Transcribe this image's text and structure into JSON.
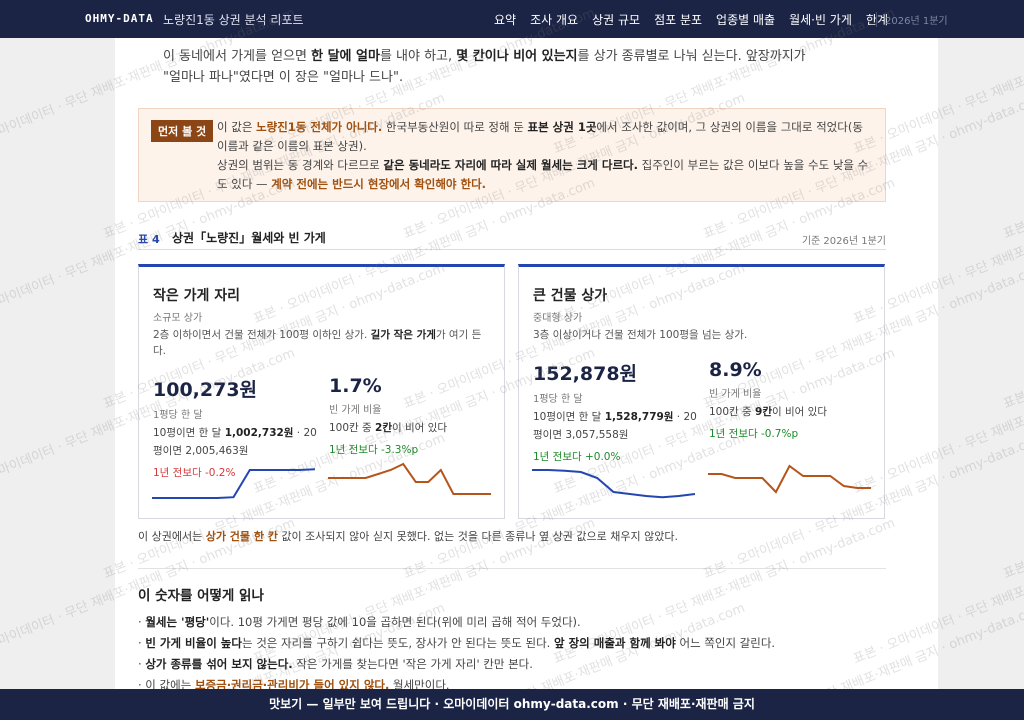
{
  "nav": {
    "brand": "OHMY-DATA",
    "title": "노량진1동 상권 분석 리포트",
    "items": [
      "요약",
      "조사 개요",
      "상권 규모",
      "점포 분포",
      "업종별 매출",
      "월세·빈 가게",
      "한계"
    ],
    "period": "2026년 1분기"
  },
  "watermark": "표본 · 오마이데이터 · 무단 재배포·재판매 금지 · ohmy-data.com",
  "intro": {
    "segments": [
      {
        "text": "이 동네에서 가게를 얻으면 ",
        "style": "plain"
      },
      {
        "text": "한 달에 얼마",
        "style": "bold"
      },
      {
        "text": "를 내야 하고, ",
        "style": "plain"
      },
      {
        "text": "몇 칸이나 비어 있는지",
        "style": "bold"
      },
      {
        "text": "를 상가 종류별로 나눠 싣는다. 앞장까지가 \"얼마나 파나\"였다면 이 장은 \"얼마나 드나\".",
        "style": "plain"
      }
    ]
  },
  "callout": {
    "tag": "먼저 볼 것",
    "segments": [
      {
        "text": "이 값은 ",
        "style": "plain"
      },
      {
        "text": "노량진1동 전체가 아니다.",
        "style": "accent"
      },
      {
        "text": " 한국부동산원이 따로 정해 둔 ",
        "style": "plain"
      },
      {
        "text": "표본 상권 1곳",
        "style": "bold"
      },
      {
        "text": "에서 조사한 값이며, 그 상권의 이름을 그대로 적었다(동 이름과 같은 이름의 표본 상권).",
        "style": "plain"
      },
      {
        "text": "\n",
        "style": "break"
      },
      {
        "text": "상권의 범위는 동 경계와 다르므로 ",
        "style": "plain"
      },
      {
        "text": "같은 동네라도 자리에 따라 실제 월세는 크게 다르다.",
        "style": "bold"
      },
      {
        "text": " 집주인이 부르는 값은 이보다 높을 수도 낮을 수도 있다 — ",
        "style": "plain"
      },
      {
        "text": "계약 전에는 반드시 현장에서 확인해야 한다.",
        "style": "accent"
      }
    ]
  },
  "table": {
    "label": "표 4",
    "title": "상권「노량진」월세와 빈 가게",
    "basis": "기준 2026년 1분기"
  },
  "cards": [
    {
      "title": "작은 가게 자리",
      "subtitle": "소규모 상가",
      "description": {
        "segments": [
          {
            "text": "2층 이하이면서 건물 전체가 100평 이하인 상가. ",
            "style": "plain"
          },
          {
            "text": "길가 작은 가게",
            "style": "bold"
          },
          {
            "text": "가 여기 든다.",
            "style": "plain"
          }
        ]
      },
      "rent": {
        "value": "100,273원",
        "unit": "1평당 한 달",
        "detail": {
          "segments": [
            {
              "text": "10평이면 한 달 ",
              "style": "plain"
            },
            {
              "text": "1,002,732원",
              "style": "bold"
            },
            {
              "text": " · 20평이면 2,005,463원",
              "style": "plain"
            }
          ]
        },
        "change": "1년 전보다 -0.2%",
        "change_color": "#d23c3c",
        "line_color": "#2346b0",
        "trend": [
          1,
          1,
          1,
          1,
          1,
          1.2,
          8,
          8,
          8,
          8,
          8.2
        ],
        "trend_lim": [
          0,
          10
        ]
      },
      "vacancy": {
        "value": "1.7%",
        "unit": "빈 가게 비율",
        "detail": {
          "segments": [
            {
              "text": "100칸 중 ",
              "style": "plain"
            },
            {
              "text": "2칸",
              "style": "bold"
            },
            {
              "text": "이 비어 있다",
              "style": "plain"
            }
          ]
        },
        "change": "1년 전보다 -3.3%p",
        "change_color": "#1f8a2a",
        "line_color": "#b5551c",
        "trend": [
          6,
          6,
          6,
          6,
          7,
          8,
          9.5,
          5,
          5,
          8,
          2,
          2,
          2,
          2
        ],
        "trend_lim": [
          0,
          10
        ]
      }
    },
    {
      "title": "큰 건물 상가",
      "subtitle": "중대형 상가",
      "description": {
        "segments": [
          {
            "text": "3층 이상이거나 건물 전체가 100평을 넘는 상가.",
            "style": "plain"
          }
        ]
      },
      "rent": {
        "value": "152,878원",
        "unit": "1평당 한 달",
        "detail": {
          "segments": [
            {
              "text": "10평이면 한 달 ",
              "style": "plain"
            },
            {
              "text": "1,528,779원",
              "style": "bold"
            },
            {
              "text": " · 20평이면 3,057,558원",
              "style": "plain"
            }
          ]
        },
        "change": "1년 전보다 +0.0%",
        "change_color": "#1f8a2a",
        "line_color": "#2346b0",
        "trend": [
          8,
          8,
          7.8,
          7.5,
          6,
          2.5,
          2,
          1.5,
          1.2,
          1.5,
          2
        ],
        "trend_lim": [
          0,
          10
        ]
      },
      "vacancy": {
        "value": "8.9%",
        "unit": "빈 가게 비율",
        "detail": {
          "segments": [
            {
              "text": "100칸 중 ",
              "style": "plain"
            },
            {
              "text": "9칸",
              "style": "bold"
            },
            {
              "text": "이 비어 있다",
              "style": "plain"
            }
          ]
        },
        "change": "1년 전보다 -0.7%p",
        "change_color": "#1f8a2a",
        "line_color": "#b5551c",
        "trend": [
          7,
          7,
          6,
          6,
          6,
          2.5,
          9,
          6.5,
          6.5,
          6.5,
          4,
          3.5,
          3.5
        ],
        "trend_lim": [
          0,
          10
        ]
      }
    }
  ],
  "footnote": {
    "segments": [
      {
        "text": "이 상권에서는 ",
        "style": "plain"
      },
      {
        "text": "상가 건물 한 칸",
        "style": "accent"
      },
      {
        "text": " 값이 조사되지 않아 싣지 못했다. 없는 것을 다른 종류나 옆 상권 값으로 채우지 않았다.",
        "style": "plain"
      }
    ]
  },
  "howto": {
    "heading": "이 숫자를 어떻게 읽나",
    "bullets": [
      {
        "segments": [
          {
            "text": "· ",
            "style": "plain"
          },
          {
            "text": "월세는 '평당'",
            "style": "bold"
          },
          {
            "text": "이다. 10평 가게면 평당 값에 10을 곱하면 된다(위에 미리 곱해 적어 두었다).",
            "style": "plain"
          }
        ]
      },
      {
        "segments": [
          {
            "text": "· ",
            "style": "plain"
          },
          {
            "text": "빈 가게 비율이 높다",
            "style": "bold"
          },
          {
            "text": "는 것은 자리를 구하기 쉽다는 뜻도, 장사가 안 된다는 뜻도 된다. ",
            "style": "plain"
          },
          {
            "text": "앞 장의 매출과 함께 봐야",
            "style": "bold"
          },
          {
            "text": " 어느 쪽인지 갈린다.",
            "style": "plain"
          }
        ]
      },
      {
        "segments": [
          {
            "text": "· ",
            "style": "plain"
          },
          {
            "text": "상가 종류를 섞어 보지 않는다.",
            "style": "bold"
          },
          {
            "text": " 작은 가게를 찾는다면 '작은 가게 자리' 칸만 본다.",
            "style": "plain"
          }
        ]
      },
      {
        "segments": [
          {
            "text": "· 이 값에는 ",
            "style": "plain"
          },
          {
            "text": "보증금·권리금·관리비가 들어 있지 않다.",
            "style": "accent"
          },
          {
            "text": " 월세만이다.",
            "style": "plain"
          }
        ]
      }
    ]
  },
  "footer": "맛보기 — 일부만 보여 드립니다 · 오마이데이터 ohmy-data.com · 무단 재배포·재판매 금지"
}
